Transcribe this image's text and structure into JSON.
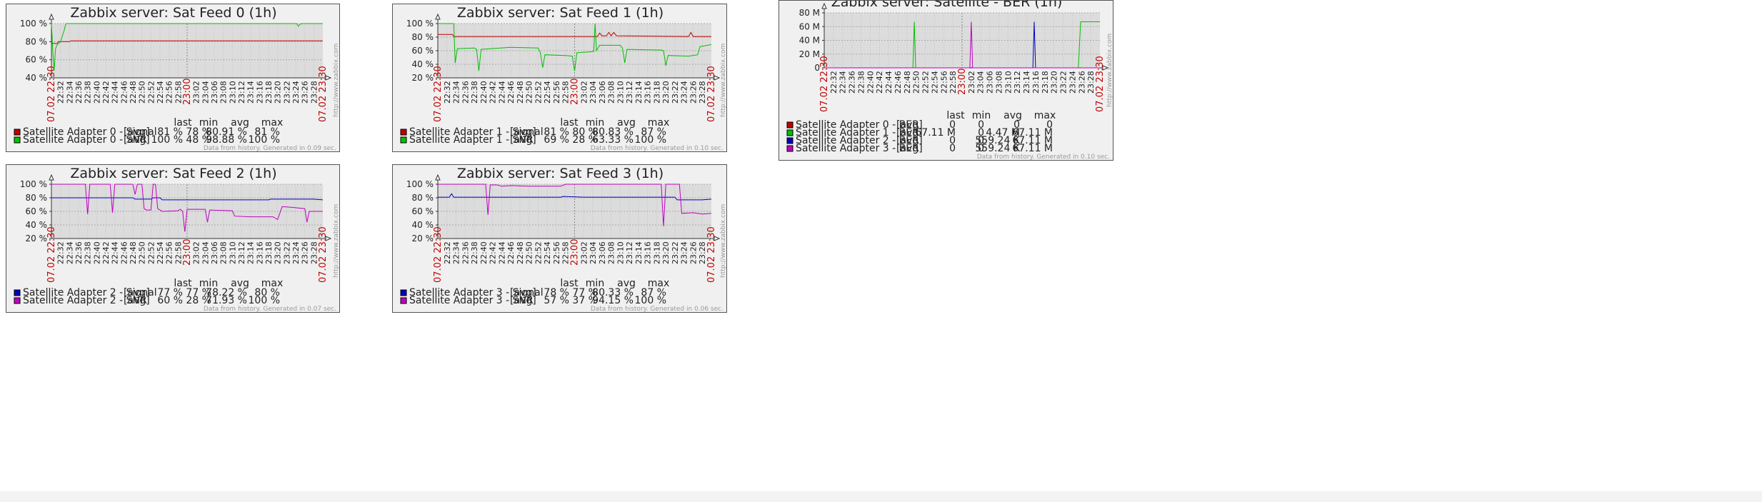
{
  "time_axis": {
    "start_label": "07.02 22:30",
    "end_label": "07.02 23:30",
    "mid_label": "23:00",
    "ticks": [
      "22:32",
      "22:34",
      "22:36",
      "22:38",
      "22:40",
      "22:42",
      "22:44",
      "22:46",
      "22:48",
      "22:50",
      "22:52",
      "22:54",
      "22:56",
      "22:58",
      "23:00",
      "23:02",
      "23:04",
      "23:06",
      "23:08",
      "23:10",
      "23:12",
      "23:14",
      "23:16",
      "23:18",
      "23:20",
      "23:22",
      "23:24",
      "23:26",
      "23:28"
    ]
  },
  "watermark": "http://www.zabbix.com",
  "colors": {
    "red": "#c00000",
    "green": "#00c000",
    "blue": "#0000c0",
    "magenta": "#c000c0"
  },
  "legend_headers": {
    "last": "last",
    "min": "min",
    "avg": "avg",
    "max": "max"
  },
  "chart_data": [
    {
      "type": "line",
      "title": "Zabbix server: Sat Feed 0 (1h)",
      "y_ticks": [
        "100 %",
        "80 %",
        "60 %",
        "40 %"
      ],
      "ylim": [
        40,
        100
      ],
      "y_unit": "%",
      "x_range_minutes": [
        0,
        60
      ],
      "series": [
        {
          "name": "Satellite Adapter 0 - Signal",
          "color": "red",
          "agg": "[avg]",
          "last": "81 %",
          "min": "78 %",
          "avg": "80.91 %",
          "max": "81 %",
          "points": [
            [
              0,
              78
            ],
            [
              1.3,
              78
            ],
            [
              1.5,
              80
            ],
            [
              4,
              80
            ],
            [
              4.3,
              81
            ],
            [
              60,
              81
            ]
          ]
        },
        {
          "name": "Satellite Adapter 0 - SNR",
          "color": "green",
          "agg": "[avg]",
          "last": "100 %",
          "min": "48 %",
          "avg": "98.88 %",
          "max": "100 %",
          "points": [
            [
              0,
              100
            ],
            [
              0.3,
              70
            ],
            [
              0.6,
              48
            ],
            [
              0.9,
              72
            ],
            [
              1.2,
              76
            ],
            [
              2,
              80
            ],
            [
              2.8,
              92
            ],
            [
              3.2,
              100
            ],
            [
              54.2,
              100
            ],
            [
              54.6,
              97
            ],
            [
              55,
              99.5
            ],
            [
              55.5,
              100
            ],
            [
              60,
              100
            ]
          ]
        }
      ],
      "footer": "Data from history. Generated in 0.09 sec."
    },
    {
      "type": "line",
      "title": "Zabbix server: Sat Feed 1 (1h)",
      "y_ticks": [
        "100 %",
        "80 %",
        "60 %",
        "40 %",
        "20 %"
      ],
      "ylim": [
        20,
        100
      ],
      "y_unit": "%",
      "x_range_minutes": [
        0,
        60
      ],
      "series": [
        {
          "name": "Satellite Adapter 1 - Signal",
          "color": "red",
          "agg": "[avg]",
          "last": "81 %",
          "min": "80 %",
          "avg": "80.83 %",
          "max": "87 %",
          "points": [
            [
              0,
              84
            ],
            [
              3.2,
              84
            ],
            [
              3.5,
              81
            ],
            [
              35,
              81
            ],
            [
              35.5,
              86
            ],
            [
              36,
              82
            ],
            [
              37,
              82
            ],
            [
              37.5,
              87
            ],
            [
              38,
              82
            ],
            [
              38.6,
              87
            ],
            [
              39.2,
              82
            ],
            [
              55,
              81
            ],
            [
              55.5,
              87
            ],
            [
              56,
              81
            ],
            [
              60,
              81
            ]
          ]
        },
        {
          "name": "Satellite Adapter 1 - SNR",
          "color": "green",
          "agg": "[avg]",
          "last": "69 %",
          "min": "28 %",
          "avg": "63.33 %",
          "max": "100 %",
          "points": [
            [
              0,
              100
            ],
            [
              3.5,
              100
            ],
            [
              3.8,
              42
            ],
            [
              4.3,
              63
            ],
            [
              8,
              64
            ],
            [
              8.5,
              62
            ],
            [
              9,
              30
            ],
            [
              9.5,
              62
            ],
            [
              16,
              65
            ],
            [
              22,
              64
            ],
            [
              22.5,
              57
            ],
            [
              23,
              35
            ],
            [
              23.5,
              54
            ],
            [
              28,
              53
            ],
            [
              29.5,
              52
            ],
            [
              30,
              30
            ],
            [
              30.5,
              57
            ],
            [
              33,
              58
            ],
            [
              34.2,
              59
            ],
            [
              34.5,
              100
            ],
            [
              34.8,
              60
            ],
            [
              35.5,
              68
            ],
            [
              40,
              68
            ],
            [
              40.5,
              64
            ],
            [
              41,
              42
            ],
            [
              41.5,
              62
            ],
            [
              49,
              61
            ],
            [
              49.5,
              60
            ],
            [
              50,
              38
            ],
            [
              50.5,
              53
            ],
            [
              55,
              52
            ],
            [
              57,
              54
            ],
            [
              57.5,
              66
            ],
            [
              60,
              69
            ]
          ]
        }
      ],
      "footer": "Data from history. Generated in 0.10 sec."
    },
    {
      "type": "line",
      "title": "Zabbix server: Satellite - BER (1h)",
      "y_ticks": [
        "80 M",
        "60 M",
        "40 M",
        "20 M",
        "0"
      ],
      "ylim": [
        0,
        80
      ],
      "y_unit": "M",
      "x_range_minutes": [
        0,
        60
      ],
      "series": [
        {
          "name": "Satellite Adapter 0 - BER",
          "color": "red",
          "agg": "[avg]",
          "last": "0",
          "min": "0",
          "avg": "0",
          "max": "0",
          "points": [
            [
              0,
              0
            ],
            [
              60,
              0
            ]
          ]
        },
        {
          "name": "Satellite Adapter 1 - BER",
          "color": "green",
          "agg": "[avg]",
          "last": "67.11 M",
          "min": "0",
          "avg": "4.47 M",
          "max": "67.11 M",
          "points": [
            [
              0,
              0
            ],
            [
              19.3,
              0
            ],
            [
              19.6,
              67
            ],
            [
              19.9,
              0
            ],
            [
              55.3,
              0
            ],
            [
              55.8,
              67
            ],
            [
              60,
              67
            ]
          ]
        },
        {
          "name": "Satellite Adapter 2 - BER",
          "color": "blue",
          "agg": "[avg]",
          "last": "0",
          "min": "0",
          "avg": "559.24 K",
          "max": "67.11 M",
          "points": [
            [
              0,
              0
            ],
            [
              45.4,
              0
            ],
            [
              45.7,
              67
            ],
            [
              46,
              0
            ],
            [
              60,
              0
            ]
          ]
        },
        {
          "name": "Satellite Adapter 3 - BER",
          "color": "magenta",
          "agg": "[avg]",
          "last": "0",
          "min": "0",
          "avg": "559.24 K",
          "max": "67.11 M",
          "points": [
            [
              0,
              0
            ],
            [
              31.7,
              0
            ],
            [
              32,
              67
            ],
            [
              32.3,
              0
            ],
            [
              60,
              0
            ]
          ]
        }
      ],
      "footer": "Data from history. Generated in 0.10 sec."
    },
    {
      "type": "line",
      "title": "Zabbix server: Sat Feed 2 (1h)",
      "y_ticks": [
        "100 %",
        "80 %",
        "60 %",
        "40 %",
        "20 %"
      ],
      "ylim": [
        20,
        100
      ],
      "y_unit": "%",
      "x_range_minutes": [
        0,
        60
      ],
      "series": [
        {
          "name": "Satellite Adapter 2 - Signal",
          "color": "blue",
          "agg": "[avg]",
          "last": "77 %",
          "min": "77 %",
          "avg": "78.22 %",
          "max": "80 %",
          "points": [
            [
              0,
              80
            ],
            [
              18,
              80
            ],
            [
              18.5,
              78
            ],
            [
              22,
              78
            ],
            [
              22.5,
              80
            ],
            [
              24,
              80
            ],
            [
              24.5,
              77
            ],
            [
              48,
              77
            ],
            [
              48.5,
              78
            ],
            [
              58,
              78
            ],
            [
              60,
              77
            ]
          ]
        },
        {
          "name": "Satellite Adapter 2 - SNR",
          "color": "magenta",
          "agg": "[avg]",
          "last": "60 %",
          "min": "28 %",
          "avg": "71.93 %",
          "max": "100 %",
          "points": [
            [
              0,
              100
            ],
            [
              7.5,
              100
            ],
            [
              8,
              56
            ],
            [
              8.5,
              100
            ],
            [
              13,
              100
            ],
            [
              13.5,
              58
            ],
            [
              14,
              100
            ],
            [
              18,
              100
            ],
            [
              18.5,
              85
            ],
            [
              19,
              100
            ],
            [
              20,
              100
            ],
            [
              20.5,
              64
            ],
            [
              21,
              62
            ],
            [
              22,
              62
            ],
            [
              22.5,
              100
            ],
            [
              23,
              100
            ],
            [
              23.5,
              64
            ],
            [
              24.5,
              60
            ],
            [
              28,
              61
            ],
            [
              28.5,
              63
            ],
            [
              29,
              60
            ],
            [
              29.5,
              30
            ],
            [
              30,
              63
            ],
            [
              34,
              63
            ],
            [
              34.5,
              44
            ],
            [
              35,
              62
            ],
            [
              40,
              61
            ],
            [
              40.5,
              53
            ],
            [
              44,
              52
            ],
            [
              49,
              52
            ],
            [
              50,
              48
            ],
            [
              51,
              67
            ],
            [
              53,
              66
            ],
            [
              56,
              64
            ],
            [
              56.5,
              44
            ],
            [
              57,
              60
            ],
            [
              60,
              60
            ]
          ]
        }
      ],
      "footer": "Data from history. Generated in 0.07 sec."
    },
    {
      "type": "line",
      "title": "Zabbix server: Sat Feed 3 (1h)",
      "y_ticks": [
        "100 %",
        "80 %",
        "60 %",
        "40 %",
        "20 %"
      ],
      "ylim": [
        20,
        100
      ],
      "y_unit": "%",
      "x_range_minutes": [
        0,
        60
      ],
      "series": [
        {
          "name": "Satellite Adapter 3 - Signal",
          "color": "blue",
          "agg": "[avg]",
          "last": "78 %",
          "min": "77 %",
          "avg": "80.33 %",
          "max": "87 %",
          "points": [
            [
              0,
              81
            ],
            [
              2.5,
              81
            ],
            [
              3,
              86
            ],
            [
              3.5,
              81
            ],
            [
              27,
              81
            ],
            [
              27.5,
              82
            ],
            [
              32,
              81
            ],
            [
              52,
              81
            ],
            [
              52.5,
              77
            ],
            [
              58,
              77
            ],
            [
              60,
              78
            ]
          ]
        },
        {
          "name": "Satellite Adapter 3 - SNR",
          "color": "magenta",
          "agg": "[avg]",
          "last": "57 %",
          "min": "37 %",
          "avg": "94.15 %",
          "max": "100 %",
          "points": [
            [
              0,
              100
            ],
            [
              10.5,
              100
            ],
            [
              11,
              55
            ],
            [
              11.5,
              99
            ],
            [
              13,
              99
            ],
            [
              14,
              97
            ],
            [
              16,
              98
            ],
            [
              20,
              97
            ],
            [
              27,
              97
            ],
            [
              28,
              100
            ],
            [
              49,
              100
            ],
            [
              49.5,
              38
            ],
            [
              50,
              100
            ],
            [
              53,
              100
            ],
            [
              53.5,
              57
            ],
            [
              56,
              58
            ],
            [
              58,
              56
            ],
            [
              60,
              57
            ]
          ]
        }
      ],
      "footer": "Data from history. Generated in 0.06 sec."
    }
  ]
}
